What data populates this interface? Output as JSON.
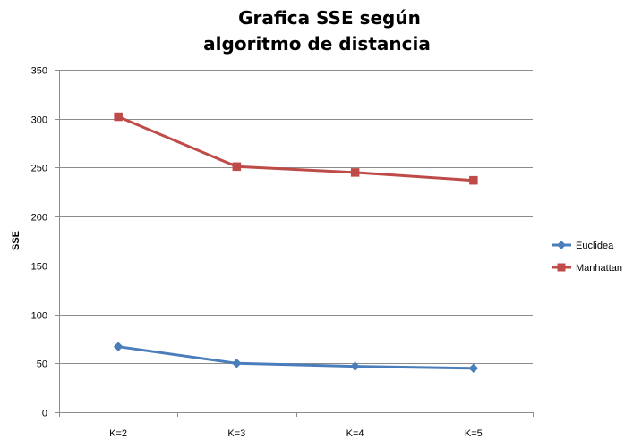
{
  "chart_data": {
    "type": "line",
    "title_lines": [
      "Grafica SSE según",
      "algoritmo de distancia"
    ],
    "xlabel": "",
    "ylabel": "SSE",
    "categories": [
      "K=2",
      "K=3",
      "K=4",
      "K=5"
    ],
    "ylim": [
      0,
      350
    ],
    "yticks": [
      0,
      50,
      100,
      150,
      200,
      250,
      300,
      350
    ],
    "grid": true,
    "legend_position": "right",
    "series": [
      {
        "name": "Euclidea",
        "values": [
          67,
          50,
          47,
          45
        ],
        "color": "#4a7ebb",
        "marker": "diamond"
      },
      {
        "name": "Manhattan",
        "values": [
          302,
          251,
          245,
          237
        ],
        "color": "#be4b48",
        "marker": "square"
      }
    ]
  }
}
